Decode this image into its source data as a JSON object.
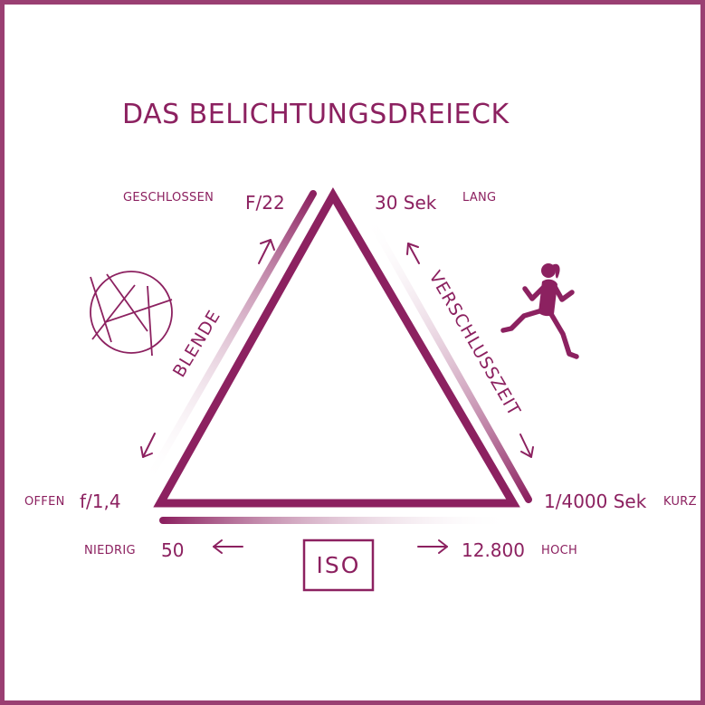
{
  "title": "DAS BELICHTUNGSDREIECK",
  "colors": {
    "primary": "#8c2160",
    "frame": "#9a3f72",
    "gradient_light": "#ffffff"
  },
  "aperture": {
    "label": "BLENDE",
    "closed_label": "GESCHLOSSEN",
    "closed_value": "F/22",
    "open_label": "OFFEN",
    "open_value": "f/1,4",
    "icon": "aperture-icon"
  },
  "shutter": {
    "label": "VERSCHLUSSZEIT",
    "long_value": "30 Sek",
    "long_label": "LANG",
    "short_value": "1/4000 Sek",
    "short_label": "KURZ",
    "icon": "runner-icon"
  },
  "iso": {
    "label": "ISO",
    "low_label": "NIEDRIG",
    "low_value": "50",
    "high_value": "12.800",
    "high_label": "HOCH"
  }
}
